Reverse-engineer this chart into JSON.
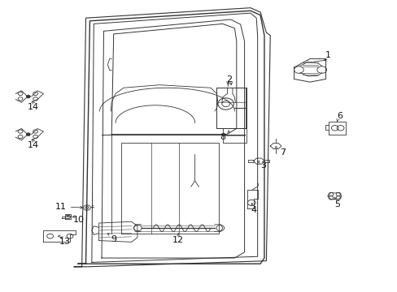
{
  "bg_color": "#ffffff",
  "fig_width": 4.89,
  "fig_height": 3.6,
  "dpi": 100,
  "text_color": "#111111",
  "line_color": "#333333",
  "component_color": "#333333"
}
